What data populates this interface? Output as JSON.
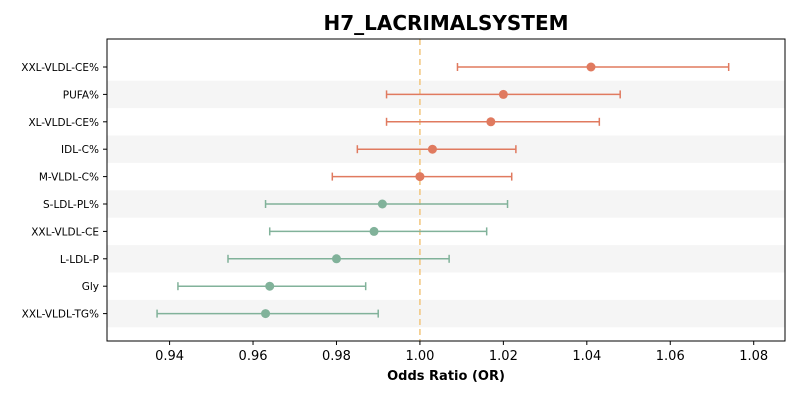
{
  "chart_data": {
    "type": "forest",
    "title": "H7_LACRIMALSYSTEM",
    "xlabel": "Odds Ratio (OR)",
    "ylabel": "",
    "xlim": [
      0.925,
      1.0875
    ],
    "xticks": [
      0.94,
      0.96,
      0.98,
      1.0,
      1.02,
      1.04,
      1.06,
      1.08
    ],
    "xtick_labels": [
      "0.94",
      "0.96",
      "0.98",
      "1.00",
      "1.02",
      "1.04",
      "1.06",
      "1.08"
    ],
    "reference_line": 1.0,
    "row_banding": true,
    "colors": {
      "positive": "#E07A5F",
      "negative": "#81B29A",
      "reference": "#F2C57C",
      "band": "#F5F5F5",
      "axis": "#000000"
    },
    "points": [
      {
        "label": "XXL-VLDL-CE%",
        "or": 1.041,
        "lower": 1.009,
        "upper": 1.074
      },
      {
        "label": "PUFA%",
        "or": 1.02,
        "lower": 0.992,
        "upper": 1.048
      },
      {
        "label": "XL-VLDL-CE%",
        "or": 1.017,
        "lower": 0.992,
        "upper": 1.043
      },
      {
        "label": "IDL-C%",
        "or": 1.003,
        "lower": 0.985,
        "upper": 1.023
      },
      {
        "label": "M-VLDL-C%",
        "or": 1.0,
        "lower": 0.979,
        "upper": 1.022
      },
      {
        "label": "S-LDL-PL%",
        "or": 0.991,
        "lower": 0.963,
        "upper": 1.021
      },
      {
        "label": "XXL-VLDL-CE",
        "or": 0.989,
        "lower": 0.964,
        "upper": 1.016
      },
      {
        "label": "L-LDL-P",
        "or": 0.98,
        "lower": 0.954,
        "upper": 1.007
      },
      {
        "label": "Gly",
        "or": 0.964,
        "lower": 0.942,
        "upper": 0.987
      },
      {
        "label": "XXL-VLDL-TG%",
        "or": 0.963,
        "lower": 0.937,
        "upper": 0.99
      }
    ]
  }
}
